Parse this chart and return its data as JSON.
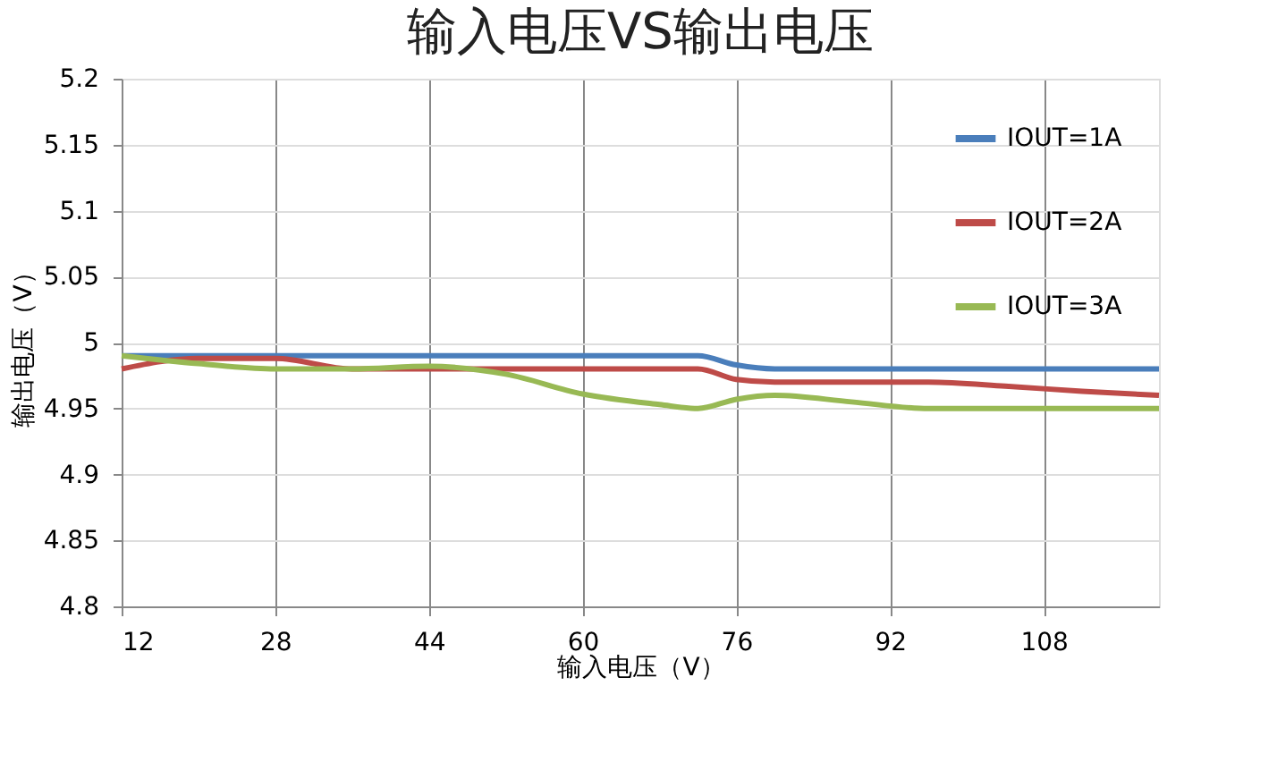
{
  "chart_data": {
    "type": "line",
    "title": "输入电压VS输出电压",
    "xlabel": "输入电压（V）",
    "ylabel": "输出电压（V）",
    "x": [
      12,
      20,
      28,
      36,
      44,
      52,
      60,
      68,
      72,
      76,
      80,
      88,
      96,
      104,
      112,
      120
    ],
    "series": [
      {
        "name": "IOUT=1A",
        "color": "#4a7ebb",
        "values": [
          4.99,
          4.99,
          4.99,
          4.99,
          4.99,
          4.99,
          4.99,
          4.99,
          4.99,
          4.983,
          4.98,
          4.98,
          4.98,
          4.98,
          4.98,
          4.98
        ]
      },
      {
        "name": "IOUT=2A",
        "color": "#be4b48",
        "values": [
          4.98,
          4.988,
          4.988,
          4.98,
          4.98,
          4.98,
          4.98,
          4.98,
          4.98,
          4.972,
          4.97,
          4.97,
          4.97,
          4.967,
          4.963,
          4.96
        ]
      },
      {
        "name": "IOUT=3A",
        "color": "#98b954",
        "values": [
          4.99,
          4.984,
          4.98,
          4.98,
          4.982,
          4.976,
          4.961,
          4.953,
          4.95,
          4.957,
          4.96,
          4.955,
          4.95,
          4.95,
          4.95,
          4.95
        ]
      }
    ],
    "xlim": [
      12,
      120
    ],
    "xticks": [
      12,
      28,
      44,
      60,
      76,
      92,
      108
    ],
    "ylim": [
      4.8,
      5.2
    ],
    "yticks": [
      4.8,
      4.85,
      4.9,
      4.95,
      5,
      5.05,
      5.1,
      5.15,
      5.2
    ],
    "grid": true,
    "legend": "top right",
    "line_style": "solid",
    "marker": "none"
  }
}
